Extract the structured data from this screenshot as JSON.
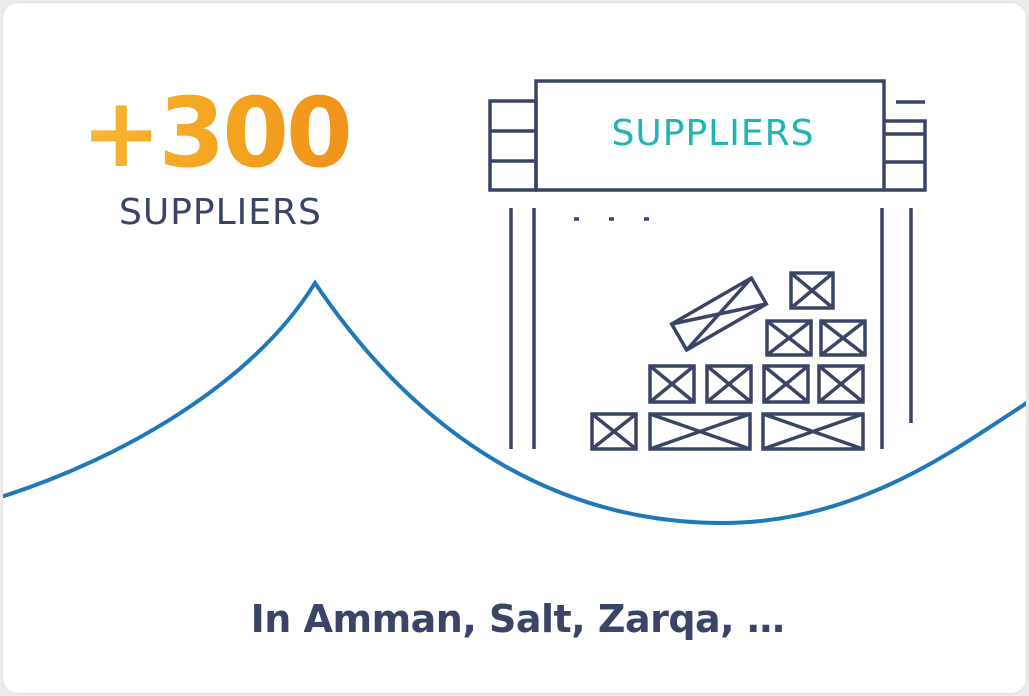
{
  "stat": {
    "value": "+300",
    "label": "SUPPLIERS"
  },
  "sign": {
    "text": "SUPPLIERS"
  },
  "footer": {
    "text": "In Amman, Salt, Zarqa, …"
  },
  "colors": {
    "accent": "#f4a21f",
    "line": "#3a4466",
    "curve": "#1f78b8",
    "sign_text": "#1fb5b0"
  },
  "icons": [
    "warehouse-icon",
    "crate-icon",
    "wave-curve"
  ]
}
